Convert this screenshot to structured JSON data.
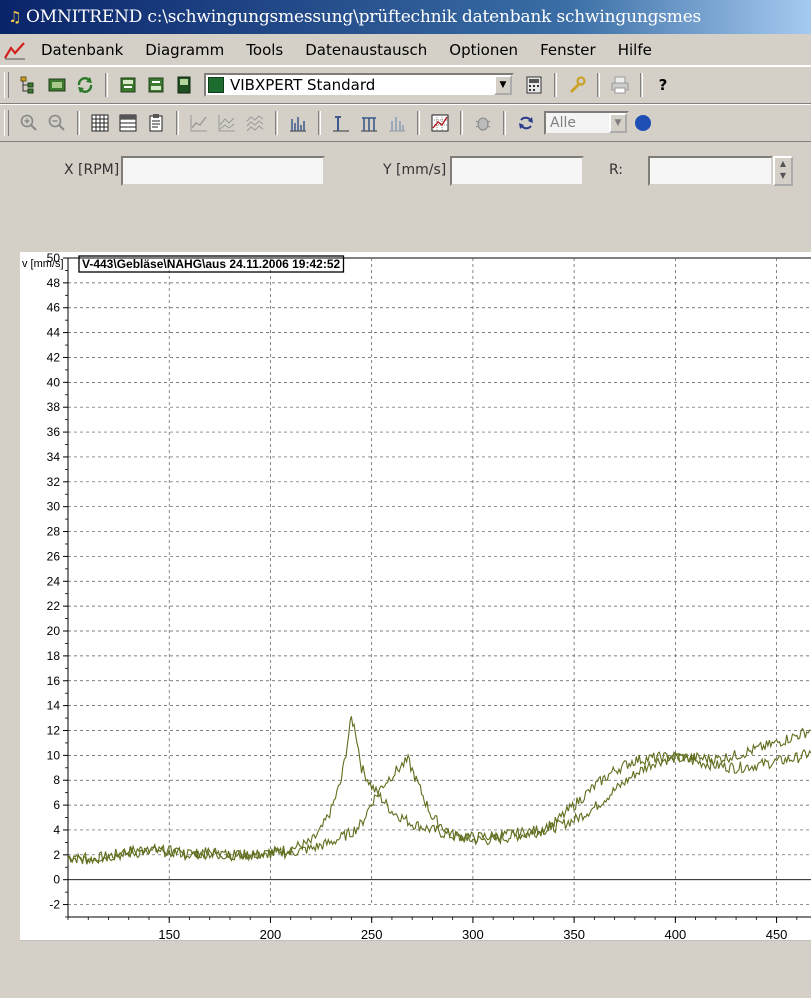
{
  "window": {
    "title": "OMNITREND c:\\schwingungsmessung\\prüftechnik datenbank schwingungsmes"
  },
  "menu": {
    "items": [
      {
        "id": "datenbank",
        "label": "Datenbank"
      },
      {
        "id": "diagramm",
        "label": "Diagramm"
      },
      {
        "id": "tools",
        "label": "Tools"
      },
      {
        "id": "datenaustausch",
        "label": "Datenaustausch"
      },
      {
        "id": "optionen",
        "label": "Optionen"
      },
      {
        "id": "fenster",
        "label": "Fenster"
      },
      {
        "id": "hilfe",
        "label": "Hilfe"
      }
    ]
  },
  "toolbar": {
    "profile_select": "VIBXPERT Standard",
    "filter_select": "Alle"
  },
  "readout": {
    "x_label": "X [RPM]",
    "y_label": "Y [mm/s]",
    "r_label": "R:",
    "x_value": "",
    "y_value": "",
    "r_value": ""
  },
  "colors": {
    "trace": "#5f6f1e",
    "titlebar": "#0a246a"
  },
  "chart_data": {
    "type": "line",
    "title": "V-443\\Gebläse\\NAHG\\aus 24.11.2006 19:42:52",
    "ylabel": "v [mm/s]",
    "xlabel": "",
    "xlim": [
      100,
      467
    ],
    "ylim": [
      -3,
      50
    ],
    "x_ticks": [
      150,
      200,
      250,
      300,
      350,
      400,
      450
    ],
    "y_ticks": [
      -2,
      0,
      2,
      4,
      6,
      8,
      10,
      12,
      14,
      16,
      18,
      20,
      22,
      24,
      26,
      28,
      30,
      32,
      34,
      36,
      38,
      40,
      42,
      44,
      46,
      48,
      50
    ],
    "grid": true,
    "series": [
      {
        "x": [
          100,
          110,
          120,
          130,
          140,
          150,
          160,
          170,
          180,
          190,
          200,
          210,
          220,
          225,
          230,
          235,
          238,
          240,
          242,
          245,
          250,
          255,
          260,
          265,
          270,
          280,
          290,
          300,
          310,
          320,
          330,
          340,
          350,
          360,
          370,
          380,
          390,
          400,
          410,
          420,
          430,
          440,
          450,
          460,
          467
        ],
        "y": [
          1.8,
          1.6,
          1.9,
          2.3,
          2.5,
          2.2,
          2.0,
          2.2,
          2.0,
          2.1,
          2.2,
          2.5,
          3.0,
          4.0,
          5.6,
          8.0,
          11.0,
          13.0,
          12.0,
          9.0,
          7.5,
          6.5,
          5.5,
          5.0,
          4.5,
          4.0,
          3.5,
          3.2,
          3.2,
          3.5,
          3.8,
          4.2,
          4.8,
          5.8,
          7.2,
          8.5,
          9.5,
          9.8,
          9.5,
          9.2,
          9.0,
          9.2,
          9.5,
          9.8,
          10.2
        ]
      },
      {
        "x": [
          100,
          110,
          120,
          130,
          140,
          150,
          160,
          170,
          180,
          190,
          200,
          210,
          220,
          230,
          240,
          245,
          250,
          255,
          260,
          265,
          268,
          272,
          276,
          280,
          290,
          300,
          310,
          320,
          330,
          340,
          350,
          360,
          370,
          380,
          390,
          400,
          410,
          420,
          430,
          440,
          450,
          460,
          467
        ],
        "y": [
          1.6,
          1.7,
          1.9,
          2.1,
          2.3,
          2.3,
          2.1,
          2.1,
          2.0,
          2.0,
          2.1,
          2.2,
          2.5,
          3.0,
          3.8,
          4.5,
          6.2,
          7.5,
          8.4,
          9.2,
          9.6,
          8.0,
          6.5,
          5.0,
          3.6,
          3.4,
          3.5,
          3.7,
          3.9,
          4.5,
          6.0,
          7.5,
          8.8,
          9.6,
          9.8,
          9.9,
          9.8,
          9.7,
          10.0,
          10.5,
          11.0,
          11.6,
          12.0
        ]
      }
    ]
  }
}
